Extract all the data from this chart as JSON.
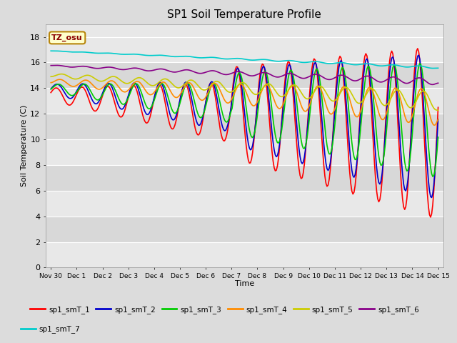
{
  "title": "SP1 Soil Temperature Profile",
  "xlabel": "Time",
  "ylabel": "Soil Temperature (C)",
  "ylim": [
    0,
    19
  ],
  "yticks": [
    0,
    2,
    4,
    6,
    8,
    10,
    12,
    14,
    16,
    18
  ],
  "annotation": "TZ_osu",
  "annotation_color": "#8B0000",
  "annotation_bg": "#FFFFCC",
  "annotation_border": "#B8860B",
  "x_labels": [
    "Nov 30",
    "Dec 1",
    "Dec 2",
    "Dec 3",
    "Dec 4",
    "Dec 5",
    "Dec 6",
    "Dec 7",
    "Dec 8",
    "Dec 9",
    "Dec 10",
    "Dec 11",
    "Dec 12",
    "Dec 13",
    "Dec 14",
    "Dec 15"
  ],
  "colors": {
    "sp1_smT_1": "#FF0000",
    "sp1_smT_2": "#0000CC",
    "sp1_smT_3": "#00CC00",
    "sp1_smT_4": "#FF8C00",
    "sp1_smT_5": "#CCCC00",
    "sp1_smT_6": "#880088",
    "sp1_smT_7": "#00CCCC"
  },
  "background_color": "#DCDCDC",
  "plot_bg_alternating": [
    "#E8E8E8",
    "#D8D8D8"
  ],
  "grid_color": "#FFFFFF"
}
